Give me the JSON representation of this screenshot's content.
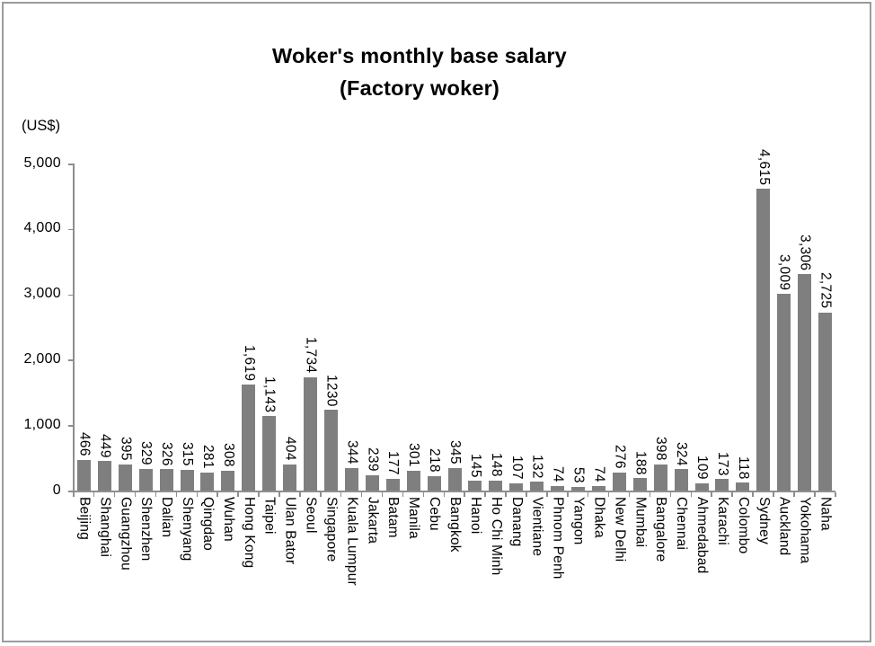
{
  "window": {
    "background_color": "#ffffff",
    "frame_border_color": "#9b9b9b"
  },
  "chart_data": {
    "type": "bar",
    "title": "Woker's monthly base salary",
    "subtitle": "(Factory woker)",
    "unit_label": "(US$)",
    "categories": [
      "Beijing",
      "Shanghai",
      "Guangzhou",
      "Shenzhen",
      "Dalian",
      "Shenyang",
      "Qingdao",
      "Wuhan",
      "Hong Kong",
      "Taipei",
      "Ulan Bator",
      "Seoul",
      "Singapore",
      "Kuala Lumpur",
      "Jakarta",
      "Batam",
      "Manila",
      "Cebu",
      "Bangkok",
      "Hanoi",
      "Ho Chi Minh",
      "Danang",
      "Vientiane",
      "Phnom Penh",
      "Yangon",
      "Dhaka",
      "New Delhi",
      "Mumbai",
      "Bangalore",
      "Chennai",
      "Ahmedabad",
      "Karachi",
      "Colombo",
      "Sydney",
      "Auckland",
      "Yokohama",
      "Naha"
    ],
    "values": [
      466,
      449,
      395,
      329,
      326,
      315,
      281,
      308,
      1619,
      1143,
      404,
      1734,
      1230,
      344,
      239,
      177,
      301,
      218,
      345,
      145,
      148,
      107,
      132,
      74,
      53,
      74,
      276,
      188,
      398,
      324,
      109,
      173,
      118,
      4615,
      3009,
      3306,
      2725
    ],
    "value_labels": [
      "466",
      "449",
      "395",
      "329",
      "326",
      "315",
      "281",
      "308",
      "1,619",
      "1,143",
      "404",
      "1,734",
      "1230",
      "344",
      "239",
      "177",
      "301",
      "218",
      "345",
      "145",
      "148",
      "107",
      "132",
      "74",
      "53",
      "74",
      "276",
      "188",
      "398",
      "324",
      "109",
      "173",
      "118",
      "4,615",
      "3,009",
      "3,306",
      "2,725"
    ],
    "xlabel": "",
    "ylabel": "(US$)",
    "ylim": [
      0,
      5000
    ],
    "y_tick_values": [
      0,
      1000,
      2000,
      3000,
      4000,
      5000
    ],
    "y_tick_labels": [
      "0",
      "1,000",
      "2,000",
      "3,000",
      "4,000",
      "5,000"
    ],
    "grid": "off",
    "legend": "none",
    "bar_color": "#7f7f7f",
    "axis_color": "#8e8e8e",
    "text_color": "#000000",
    "x_label_orientation": "vertical-reads-top-to-bottom",
    "value_label_position": "above-bar-vertical"
  }
}
